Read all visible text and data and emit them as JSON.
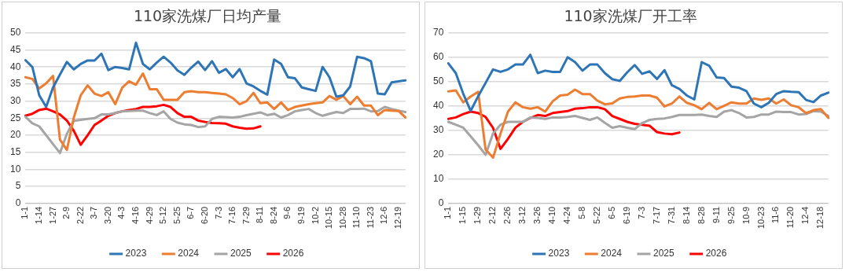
{
  "chart_data": [
    {
      "type": "line",
      "title": "110家洗煤厂日均产量",
      "categories": [
        "1-1",
        null,
        "1-14",
        null,
        "1-27",
        null,
        "2-9",
        null,
        "2-22",
        null,
        "3-7",
        null,
        "3-20",
        null,
        "4-3",
        null,
        "4-16",
        null,
        "4-29",
        null,
        "5-12",
        null,
        "5-25",
        null,
        "6-7",
        null,
        "6-20",
        null,
        "7-3",
        null,
        "7-16",
        null,
        "7-29",
        null,
        "8-11",
        null,
        "8-24",
        null,
        "9-6",
        null,
        "9-19",
        null,
        "10-2",
        null,
        "10-15",
        null,
        "10-28",
        null,
        "11-10",
        null,
        "11-23",
        null,
        "12-6",
        null,
        "12-19",
        null
      ],
      "series": [
        {
          "name": "2023",
          "color": "#2e75b6",
          "values": [
            42,
            40,
            31.7,
            28.3,
            34,
            37.8,
            41.5,
            39.3,
            40.9,
            41.9,
            41.9,
            43.9,
            39.1,
            40,
            39.7,
            39.3,
            47.1,
            40.9,
            39.3,
            41.3,
            43,
            41.3,
            39,
            37.7,
            39.8,
            41.6,
            39.1,
            41.7,
            38.3,
            39.4,
            37,
            39.4,
            35.2,
            34.3,
            33,
            31.9,
            42.2,
            40.9,
            37,
            36.7,
            34,
            33.5,
            33,
            40,
            37,
            31.3,
            31.7,
            34.3,
            43,
            42.6,
            41.7,
            32.2,
            32,
            35.5,
            35.8,
            36.1
          ]
        },
        {
          "name": "2024",
          "color": "#ed7d31",
          "values": [
            37,
            36.5,
            33.7,
            35.2,
            37.4,
            18.7,
            15.7,
            25.2,
            31.7,
            34.6,
            32.2,
            31.5,
            32.6,
            29.1,
            33.9,
            35.8,
            34.8,
            38.1,
            33.5,
            33.5,
            30.4,
            30.4,
            30.4,
            32.6,
            32.9,
            32.6,
            32.6,
            32.4,
            32.2,
            32,
            30.9,
            29.1,
            30,
            32.4,
            29.4,
            29.6,
            27.7,
            29.6,
            27.4,
            28.3,
            28.7,
            29.1,
            29.4,
            29.6,
            31.5,
            30.4,
            31.5,
            29.1,
            31.3,
            28.7,
            28.7,
            25.9,
            27.4,
            27.2,
            27.1,
            25.2
          ]
        },
        {
          "name": "2025",
          "color": "#a5a5a5",
          "values": [
            25.4,
            23.5,
            22.6,
            20,
            17.4,
            14.8,
            20.4,
            24.2,
            24.5,
            24.8,
            25,
            26.1,
            26.1,
            26.5,
            27,
            27.1,
            27.2,
            27.2,
            26.5,
            25.9,
            27,
            24.8,
            23.7,
            23.2,
            23,
            22.4,
            22.6,
            24.8,
            25.4,
            25.3,
            25.2,
            25.4,
            25.9,
            26.3,
            26.7,
            25.9,
            26.3,
            25.2,
            25.9,
            27,
            27.4,
            27.7,
            26.5,
            25.7,
            26.3,
            26.8,
            26.5,
            27.7,
            27.7,
            27.8,
            27,
            27.1,
            28.3,
            27.7,
            27.2,
            26.8
          ]
        },
        {
          "name": "2026",
          "color": "#ff0000",
          "values": [
            25.7,
            26.3,
            27.4,
            27.8,
            27,
            26.1,
            24.3,
            21.3,
            17.2,
            20,
            23,
            24.3,
            25.7,
            26.5,
            27,
            27.4,
            27.7,
            28.3,
            28.3,
            28.5,
            28.9,
            28.3,
            26.5,
            25.4,
            25.4,
            24.3,
            23.9,
            23.6,
            23.5,
            23.4,
            22.6,
            22.2,
            21.9,
            22,
            22.6,
            null,
            null,
            null,
            null,
            null,
            null,
            null,
            null,
            null,
            null,
            null,
            null,
            null,
            null,
            null,
            null,
            null,
            null,
            null,
            null,
            null
          ]
        }
      ],
      "ylim": [
        0,
        50
      ],
      "yticks": [
        0,
        5,
        10,
        15,
        20,
        25,
        30,
        35,
        40,
        45,
        50
      ],
      "grid": "y",
      "legend": "bottom"
    },
    {
      "type": "line",
      "title": "110家洗煤厂开工率",
      "categories": [
        "1-1",
        null,
        "1-15",
        null,
        "1-29",
        null,
        "2-12",
        null,
        "2-26",
        null,
        "3-12",
        null,
        "3-26",
        null,
        "4-10",
        null,
        "4-24",
        null,
        "5-8",
        null,
        "5-22",
        null,
        "6-5",
        null,
        "6-19",
        null,
        "7-3",
        null,
        "7-17",
        null,
        "7-31",
        null,
        "8-14",
        null,
        "8-28",
        null,
        "9-11",
        null,
        "9-25",
        null,
        "10-9",
        null,
        "10-23",
        null,
        "11-6",
        null,
        "11-20",
        null,
        "12-4",
        null,
        "12-18",
        null
      ],
      "series": [
        {
          "name": "2023",
          "color": "#2e75b6",
          "values": [
            57.5,
            53.5,
            45,
            38,
            44,
            49.5,
            55,
            54,
            55,
            57,
            57,
            61,
            53.5,
            54.5,
            54,
            54,
            60,
            58,
            54.5,
            57,
            57,
            53.5,
            51,
            50.3,
            53.8,
            56.8,
            53.2,
            54.2,
            51.1,
            54.7,
            48.5,
            47,
            44.3,
            42.7,
            58,
            56.5,
            51.7,
            51.5,
            47.9,
            47.5,
            46.1,
            41,
            39.5,
            41.3,
            44.9,
            46.1,
            45.8,
            45.7,
            42.5,
            41.6,
            44.3,
            45.5
          ]
        },
        {
          "name": "2024",
          "color": "#ed7d31",
          "values": [
            46,
            46.4,
            41.5,
            43.9,
            45.8,
            22.1,
            18.8,
            28.7,
            37.7,
            41.5,
            39.5,
            38.9,
            39.5,
            37.7,
            41.9,
            44.3,
            44.6,
            46.7,
            44.9,
            44.9,
            42.2,
            40.7,
            41.1,
            43.1,
            43.7,
            43.9,
            44.3,
            44.3,
            43.4,
            39.8,
            41,
            43.9,
            41.3,
            40.3,
            38.7,
            41.3,
            38.7,
            40.1,
            41.5,
            41,
            41,
            43.1,
            42.5,
            43.1,
            41,
            42.7,
            40.3,
            39.5,
            37.1,
            38.3,
            38.7,
            35.1
          ]
        },
        {
          "name": "2025",
          "color": "#a5a5a5",
          "values": [
            33.5,
            32.3,
            31.1,
            27.5,
            23.9,
            20,
            28.7,
            32.3,
            33.5,
            33.5,
            33.5,
            35.3,
            35.1,
            34.7,
            35.3,
            35.3,
            35.5,
            35.9,
            35.1,
            34.3,
            35.3,
            33.1,
            31.1,
            31.7,
            31.1,
            30.5,
            33,
            34.3,
            34.7,
            34.9,
            35.5,
            36.3,
            36.3,
            36.3,
            36.5,
            35.9,
            35.5,
            37.7,
            38.3,
            37.1,
            35.3,
            35.5,
            36.5,
            36.5,
            37.7,
            37.5,
            37.5,
            36.5,
            36.7,
            37.9,
            37.7,
            35.9
          ]
        },
        {
          "name": "2026",
          "color": "#ff0000",
          "values": [
            34.7,
            35.3,
            36.7,
            37.7,
            37.1,
            35.5,
            31,
            22.4,
            26.5,
            31.1,
            33.5,
            35.1,
            36.3,
            35.9,
            37.1,
            37.5,
            37.9,
            38.9,
            39.1,
            39.5,
            39.5,
            38.7,
            35.9,
            34.7,
            33.5,
            32.7,
            32.3,
            31.9,
            29.3,
            28.7,
            28.4,
            29.1,
            null,
            null,
            null,
            null,
            null,
            null,
            null,
            null,
            null,
            null,
            null,
            null,
            null,
            null,
            null,
            null,
            null,
            null,
            null,
            null
          ]
        }
      ],
      "ylim": [
        0,
        70
      ],
      "yticks": [
        0,
        10,
        20,
        30,
        40,
        50,
        60,
        70
      ],
      "grid": "y",
      "legend": "bottom"
    }
  ]
}
